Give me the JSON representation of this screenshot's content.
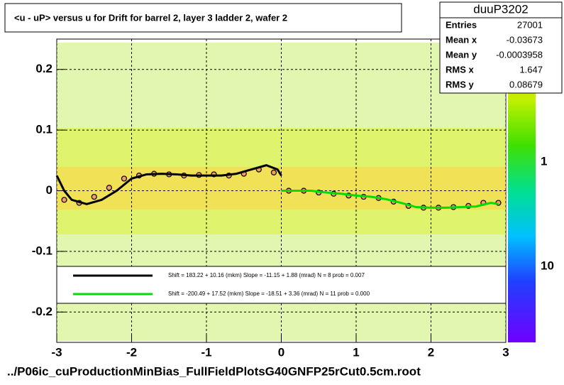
{
  "chart_data": {
    "type": "scatter",
    "title": "<u - uP>       versus   u for Drift for barrel 2, layer 3 ladder 2, wafer 2",
    "footer": "../P06ic_cuProductionMinBias_FullFieldPlotsG40GNFP25rCut0.5cm.root",
    "xlim": [
      -3,
      3
    ],
    "xticks": [
      -3,
      -2,
      -1,
      0,
      1,
      2,
      3
    ],
    "ylim": [
      -0.25,
      0.25
    ],
    "yticks": [
      -0.2,
      -0.1,
      0,
      0.1,
      0.2
    ],
    "grid": true,
    "colorbar_ticks": [
      "1",
      "10"
    ],
    "series": [
      {
        "style": "markers",
        "color": "#000000",
        "x": [
          -2.9,
          -2.7,
          -2.5,
          -2.3,
          -2.1,
          -1.9,
          -1.7,
          -1.5,
          -1.3,
          -1.1,
          -0.9,
          -0.7,
          -0.5,
          -0.3,
          -0.1,
          0.1,
          0.3,
          0.5,
          0.7,
          0.9,
          1.1,
          1.3,
          1.5,
          1.7,
          1.9,
          2.1,
          2.3,
          2.5,
          2.7,
          2.9
        ],
        "values": [
          -0.015,
          -0.02,
          -0.01,
          0.005,
          0.02,
          0.025,
          0.028,
          0.027,
          0.025,
          0.026,
          0.027,
          0.025,
          0.028,
          0.035,
          0.03,
          0.0,
          0.0,
          -0.003,
          -0.005,
          -0.008,
          -0.01,
          -0.012,
          -0.018,
          -0.025,
          -0.028,
          -0.028,
          -0.027,
          -0.025,
          -0.02,
          -0.02
        ]
      },
      {
        "style": "line",
        "color": "#000000",
        "legend_text": "Shift =   183.22 + 10.16 (mkm) Slope =   -11.15 + 1.88 (mrad)  N = 8 prob = 0.007",
        "x": [
          -3,
          -2.9,
          -2.8,
          -2.6,
          -2.4,
          -2.2,
          -2,
          -1.8,
          -1.6,
          -1.4,
          -1.2,
          -1,
          -0.8,
          -0.6,
          -0.4,
          -0.2,
          -0.05,
          0
        ],
        "values": [
          0.025,
          0.0,
          -0.015,
          -0.022,
          -0.015,
          0.0,
          0.02,
          0.027,
          0.028,
          0.027,
          0.025,
          0.025,
          0.025,
          0.028,
          0.035,
          0.042,
          0.035,
          0.025
        ]
      },
      {
        "style": "line",
        "color": "#00dd00",
        "legend_text": "Shift =  -200.49 + 17.52 (mkm) Slope =   -18.51 + 3.36 (mrad)  N = 11 prob = 0.000",
        "x": [
          0,
          0.2,
          0.4,
          0.6,
          0.8,
          1.0,
          1.2,
          1.4,
          1.6,
          1.8,
          2.0,
          2.2,
          2.4,
          2.6,
          2.8,
          2.9
        ],
        "values": [
          0.0,
          0.0,
          0.0,
          -0.003,
          -0.005,
          -0.008,
          -0.01,
          -0.014,
          -0.02,
          -0.027,
          -0.028,
          -0.028,
          -0.027,
          -0.026,
          -0.02,
          -0.022
        ]
      }
    ]
  },
  "stats": {
    "title": "duuP3202",
    "rows": [
      [
        "Entries",
        "27001"
      ],
      [
        "Mean x",
        "-0.03673"
      ],
      [
        "Mean y",
        "-0.0003958"
      ],
      [
        "RMS x",
        "1.647"
      ],
      [
        "RMS y",
        "0.08679"
      ]
    ]
  }
}
